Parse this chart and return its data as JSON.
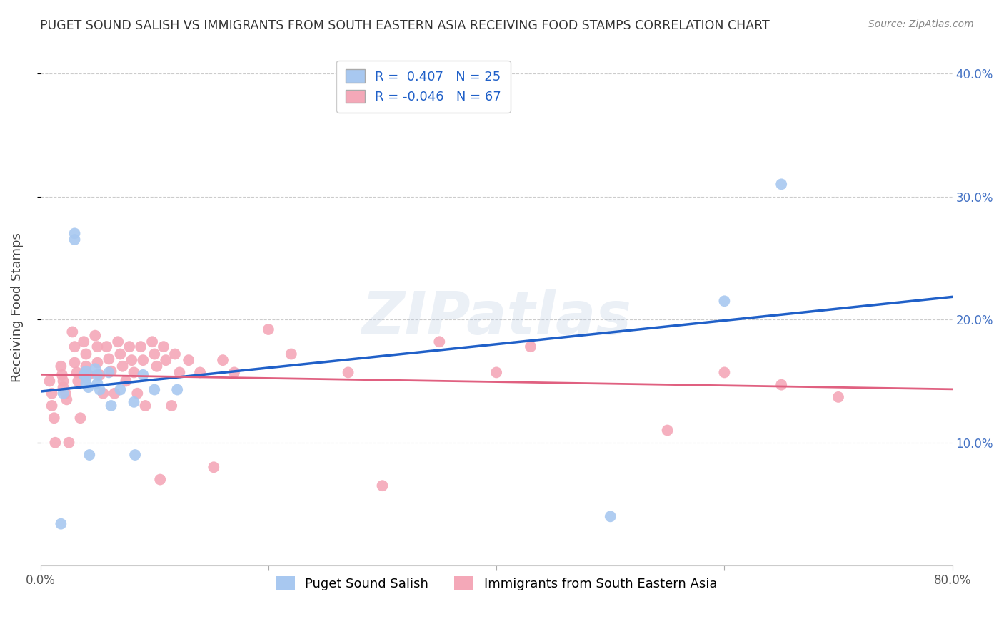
{
  "title": "PUGET SOUND SALISH VS IMMIGRANTS FROM SOUTH EASTERN ASIA RECEIVING FOOD STAMPS CORRELATION CHART",
  "source": "Source: ZipAtlas.com",
  "ylabel": "Receiving Food Stamps",
  "xlim": [
    0.0,
    0.8
  ],
  "ylim": [
    0.0,
    0.42
  ],
  "blue_R": 0.407,
  "blue_N": 25,
  "pink_R": -0.046,
  "pink_N": 67,
  "blue_color": "#a8c8f0",
  "pink_color": "#f4a8b8",
  "blue_line_color": "#2060c8",
  "pink_line_color": "#e06080",
  "watermark": "ZIPatlas",
  "legend_label_blue": "Puget Sound Salish",
  "legend_label_pink": "Immigrants from South Eastern Asia",
  "blue_scatter_x": [
    0.018,
    0.02,
    0.03,
    0.03,
    0.038,
    0.04,
    0.04,
    0.04,
    0.042,
    0.043,
    0.048,
    0.05,
    0.05,
    0.052,
    0.06,
    0.062,
    0.07,
    0.082,
    0.083,
    0.09,
    0.1,
    0.12,
    0.6,
    0.65,
    0.5
  ],
  "blue_scatter_y": [
    0.034,
    0.14,
    0.27,
    0.265,
    0.155,
    0.158,
    0.153,
    0.148,
    0.145,
    0.09,
    0.16,
    0.155,
    0.148,
    0.143,
    0.157,
    0.13,
    0.143,
    0.133,
    0.09,
    0.155,
    0.143,
    0.143,
    0.215,
    0.31,
    0.04
  ],
  "pink_scatter_x": [
    0.008,
    0.01,
    0.01,
    0.012,
    0.013,
    0.018,
    0.019,
    0.02,
    0.02,
    0.022,
    0.023,
    0.025,
    0.028,
    0.03,
    0.03,
    0.032,
    0.033,
    0.035,
    0.038,
    0.04,
    0.04,
    0.042,
    0.048,
    0.05,
    0.05,
    0.052,
    0.055,
    0.058,
    0.06,
    0.062,
    0.065,
    0.068,
    0.07,
    0.072,
    0.075,
    0.078,
    0.08,
    0.082,
    0.085,
    0.088,
    0.09,
    0.092,
    0.098,
    0.1,
    0.102,
    0.105,
    0.108,
    0.11,
    0.115,
    0.118,
    0.122,
    0.13,
    0.14,
    0.152,
    0.16,
    0.17,
    0.2,
    0.22,
    0.27,
    0.3,
    0.35,
    0.4,
    0.43,
    0.55,
    0.6,
    0.65,
    0.7
  ],
  "pink_scatter_y": [
    0.15,
    0.14,
    0.13,
    0.12,
    0.1,
    0.162,
    0.155,
    0.15,
    0.145,
    0.14,
    0.135,
    0.1,
    0.19,
    0.178,
    0.165,
    0.157,
    0.15,
    0.12,
    0.182,
    0.172,
    0.162,
    0.155,
    0.187,
    0.178,
    0.165,
    0.155,
    0.14,
    0.178,
    0.168,
    0.158,
    0.14,
    0.182,
    0.172,
    0.162,
    0.15,
    0.178,
    0.167,
    0.157,
    0.14,
    0.178,
    0.167,
    0.13,
    0.182,
    0.172,
    0.162,
    0.07,
    0.178,
    0.167,
    0.13,
    0.172,
    0.157,
    0.167,
    0.157,
    0.08,
    0.167,
    0.157,
    0.192,
    0.172,
    0.157,
    0.065,
    0.182,
    0.157,
    0.178,
    0.11,
    0.157,
    0.147,
    0.137
  ]
}
